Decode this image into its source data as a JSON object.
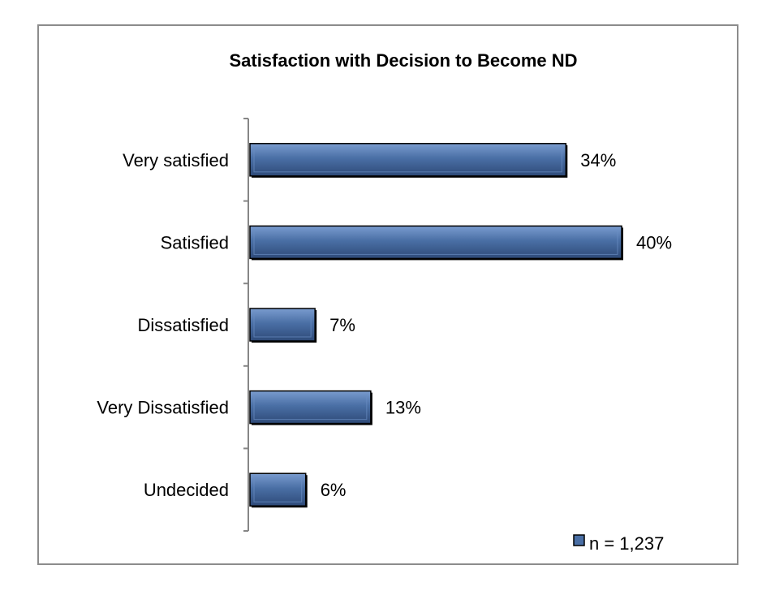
{
  "chart_data": {
    "type": "bar",
    "orientation": "horizontal",
    "title": "Satisfaction with Decision to Become ND",
    "categories": [
      "Very satisfied",
      "Satisfied",
      "Dissatisfied",
      "Very Dissatisfied",
      "Undecided"
    ],
    "series": [
      {
        "name": "n = 1,237",
        "values": [
          34,
          40,
          7,
          13,
          6
        ],
        "value_labels": [
          "34%",
          "40%",
          "7%",
          "13%",
          "6%"
        ]
      }
    ],
    "xlim": [
      0,
      45
    ],
    "xlabel": "",
    "ylabel": "",
    "grid": false,
    "legend_position": "bottom-right",
    "colors": {
      "bar": "#4a6fa5",
      "bar_light": "#6b8fc4",
      "bar_dark": "#2e4a78",
      "bar_outline": "#000000",
      "axis": "#868686",
      "frame": "#8c8c8c"
    }
  }
}
